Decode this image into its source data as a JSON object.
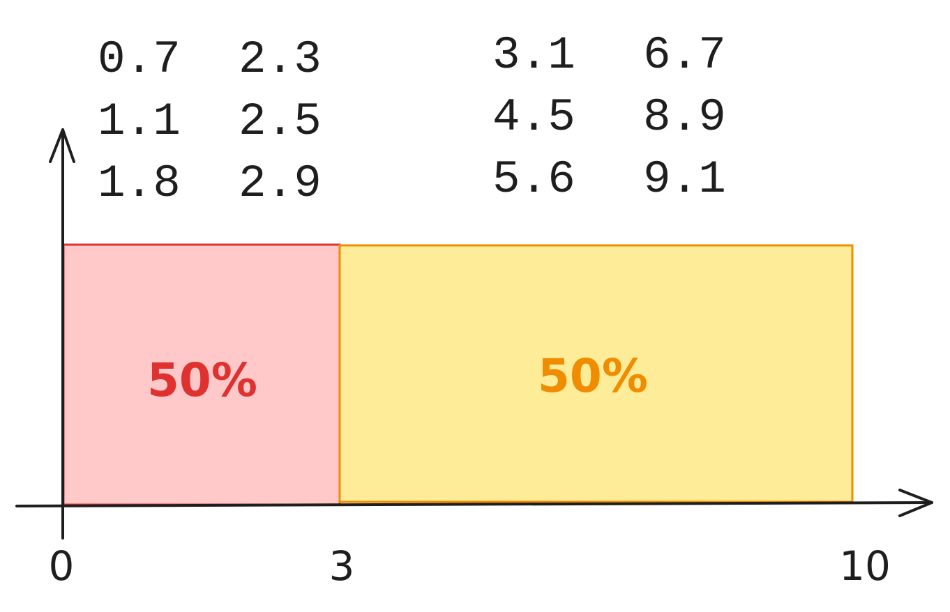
{
  "data_columns": [
    [
      0.7,
      1.1,
      1.8
    ],
    [
      2.3,
      2.5,
      2.9
    ],
    [
      3.1,
      4.5,
      5.6
    ],
    [
      6.7,
      8.9,
      9.1
    ]
  ],
  "axis": {
    "ticks": [
      0,
      3,
      10
    ]
  },
  "boxes": [
    {
      "label": "50%",
      "stroke": "#e03131",
      "fill": "#ffc9c9"
    },
    {
      "label": "50%",
      "stroke": "#f08c00",
      "fill": "#ffec99"
    }
  ]
}
